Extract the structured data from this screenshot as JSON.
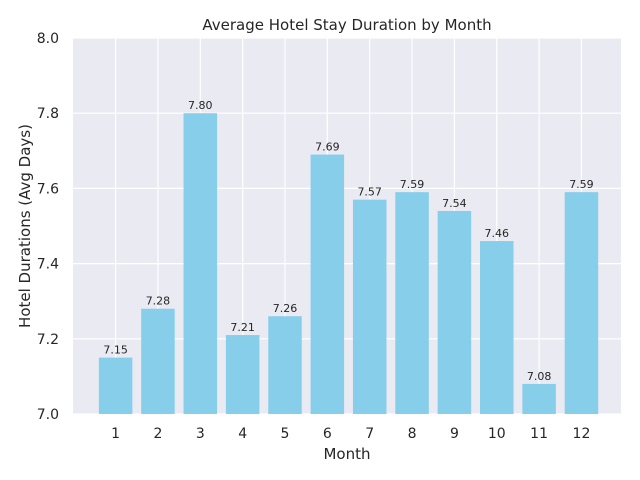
{
  "chart_data": {
    "type": "bar",
    "title": "Average Hotel Stay Duration by Month",
    "xlabel": "Month",
    "ylabel": "Hotel Durations (Avg Days)",
    "categories": [
      "1",
      "2",
      "3",
      "4",
      "5",
      "6",
      "7",
      "8",
      "9",
      "10",
      "11",
      "12"
    ],
    "values": [
      7.15,
      7.28,
      7.8,
      7.21,
      7.26,
      7.69,
      7.57,
      7.59,
      7.54,
      7.46,
      7.08,
      7.59
    ],
    "value_labels": [
      "7.15",
      "7.28",
      "7.80",
      "7.21",
      "7.26",
      "7.69",
      "7.57",
      "7.59",
      "7.54",
      "7.46",
      "7.08",
      "7.59"
    ],
    "ylim": [
      7.0,
      8.0
    ],
    "yticks": [
      "7.0",
      "7.2",
      "7.4",
      "7.6",
      "7.8",
      "8.0"
    ],
    "grid": true,
    "colors": {
      "bar": "#87CEEB",
      "background": "#EAEAF2",
      "grid": "#FFFFFF"
    }
  }
}
